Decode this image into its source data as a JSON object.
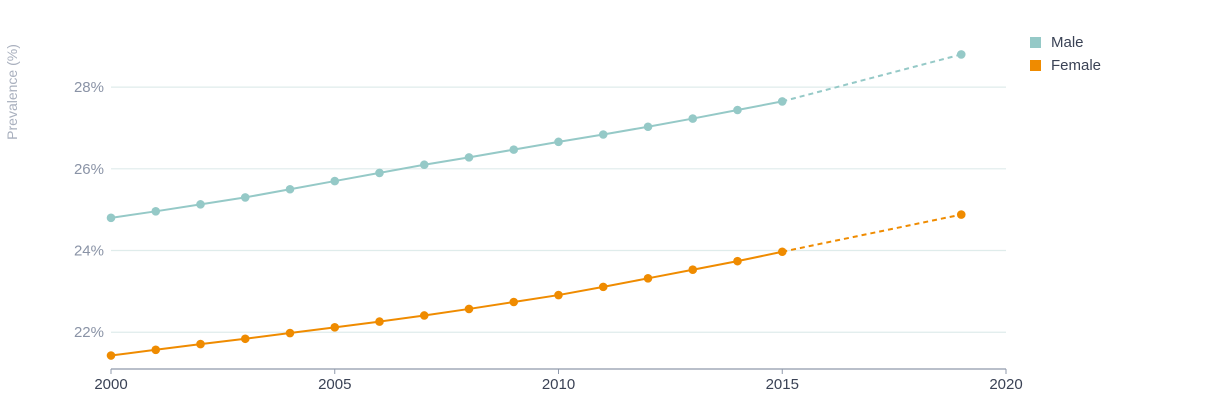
{
  "chart_data": {
    "type": "line",
    "ylabel": "Prevalence (%)",
    "xlabel": "",
    "xlim": [
      2000,
      2020
    ],
    "ylim": [
      21.1,
      29.3
    ],
    "x_ticks": [
      2000,
      2005,
      2010,
      2015,
      2020
    ],
    "y_ticks": [
      22,
      24,
      26,
      28
    ],
    "y_tick_labels": [
      "22%",
      "24%",
      "26%",
      "28%"
    ],
    "legend_position": "top-right",
    "grid": true,
    "series": [
      {
        "name": "Male",
        "color": "#95c9c7",
        "x": [
          2000,
          2001,
          2002,
          2003,
          2004,
          2005,
          2006,
          2007,
          2008,
          2009,
          2010,
          2011,
          2012,
          2013,
          2014,
          2015
        ],
        "values": [
          24.8,
          24.96,
          25.13,
          25.3,
          25.5,
          25.7,
          25.9,
          26.1,
          26.28,
          26.47,
          26.66,
          26.84,
          27.03,
          27.23,
          27.44,
          27.65
        ],
        "projection": {
          "x": [
            2015,
            2019
          ],
          "values": [
            27.65,
            28.8
          ]
        }
      },
      {
        "name": "Female",
        "color": "#ef8b00",
        "x": [
          2000,
          2001,
          2002,
          2003,
          2004,
          2005,
          2006,
          2007,
          2008,
          2009,
          2010,
          2011,
          2012,
          2013,
          2014,
          2015
        ],
        "values": [
          21.43,
          21.57,
          21.71,
          21.84,
          21.98,
          22.12,
          22.26,
          22.41,
          22.57,
          22.74,
          22.91,
          23.11,
          23.32,
          23.53,
          23.74,
          23.97
        ],
        "projection": {
          "x": [
            2015,
            2019
          ],
          "values": [
            23.97,
            24.88
          ]
        }
      }
    ]
  }
}
